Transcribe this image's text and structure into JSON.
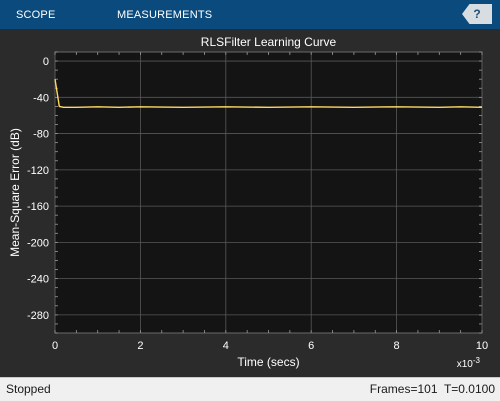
{
  "toolstrip": {
    "tabs": [
      {
        "label": "SCOPE"
      },
      {
        "label": "MEASUREMENTS"
      }
    ],
    "help_label": "?"
  },
  "status": {
    "state": "Stopped",
    "frames": "Frames=101",
    "time": "T=0.0100"
  },
  "colors": {
    "toolstrip": "#0a4a7c",
    "plot_background": "#141414",
    "line": "#ffd966",
    "grid": "#575757",
    "text": "#ffffff"
  },
  "chart_data": {
    "type": "line",
    "title": "RLSFilter Learning Curve",
    "xlabel": "Time (secs)",
    "ylabel": "Mean-Square Error (dB)",
    "x_exponent": "x10^-3",
    "xlim": [
      0,
      10
    ],
    "ylim": [
      -300,
      10
    ],
    "xticks": [
      0,
      2,
      4,
      6,
      8,
      10
    ],
    "yticks": [
      0,
      -40,
      -80,
      -120,
      -160,
      -200,
      -240,
      -280
    ],
    "grid": true,
    "series": [
      {
        "color": "#ffd966",
        "x": [
          0,
          0.1,
          0.2,
          0.5,
          1,
          1.5,
          2,
          3,
          4,
          5,
          6,
          7,
          8,
          9,
          9.5,
          10
        ],
        "y": [
          -20,
          -50,
          -51,
          -51,
          -50.5,
          -51,
          -50.5,
          -51,
          -50.5,
          -51,
          -50.5,
          -51,
          -50.5,
          -51,
          -50.5,
          -51
        ]
      }
    ]
  }
}
